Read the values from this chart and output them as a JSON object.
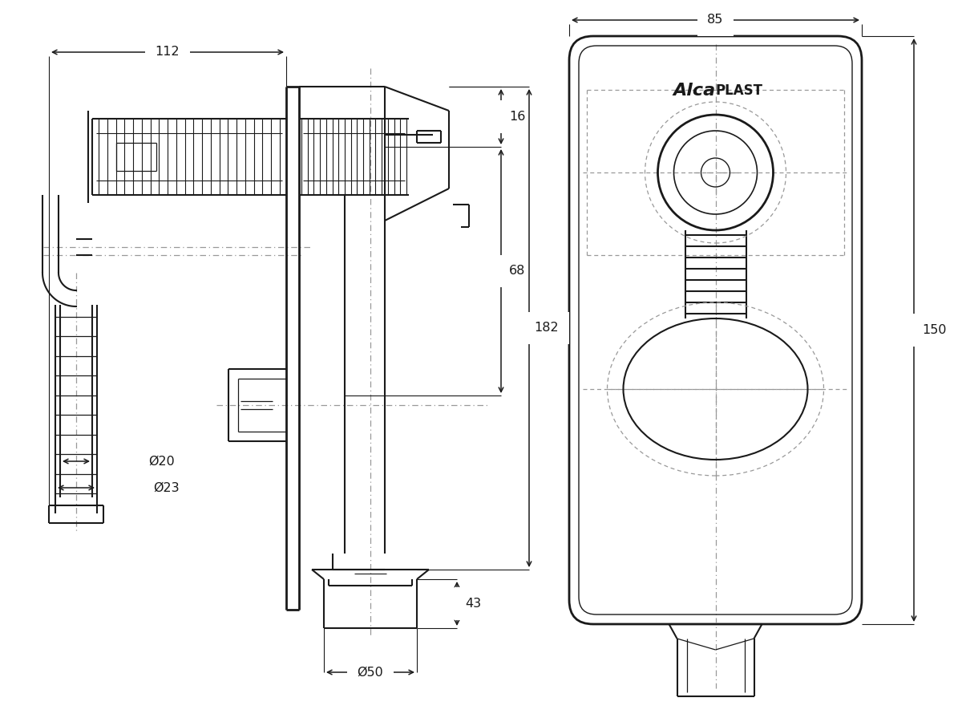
{
  "bg_color": "#ffffff",
  "line_color": "#1a1a1a",
  "dim_color": "#1a1a1a",
  "dashed_color": "#999999",
  "dim_112": "112",
  "dim_85": "85",
  "dim_16": "16",
  "dim_68": "68",
  "dim_182": "182",
  "dim_43": "43",
  "dim_50": "Ø50",
  "dim_20": "Ø20",
  "dim_23": "Ø23",
  "dim_150": "150"
}
